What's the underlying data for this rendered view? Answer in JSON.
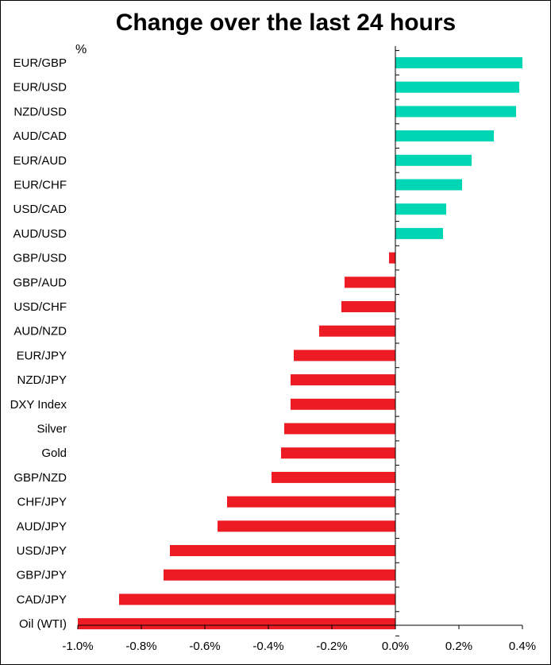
{
  "chart_data": {
    "type": "bar",
    "orientation": "horizontal",
    "title": "Change over the last 24 hours",
    "unit_label": "%",
    "xlim": [
      -1.0,
      0.4
    ],
    "x_ticks": [
      {
        "value": -1.0,
        "label": "-1.0%"
      },
      {
        "value": -0.8,
        "label": "-0.8%"
      },
      {
        "value": -0.6,
        "label": "-0.6%"
      },
      {
        "value": -0.4,
        "label": "-0.4%"
      },
      {
        "value": -0.2,
        "label": "-0.2%"
      },
      {
        "value": 0.0,
        "label": "0.0%"
      },
      {
        "value": 0.2,
        "label": "0.2%"
      },
      {
        "value": 0.4,
        "label": "0.4%"
      }
    ],
    "categories": [
      "EUR/GBP",
      "EUR/USD",
      "NZD/USD",
      "AUD/CAD",
      "EUR/AUD",
      "EUR/CHF",
      "USD/CAD",
      "AUD/USD",
      "GBP/USD",
      "GBP/AUD",
      "USD/CHF",
      "AUD/NZD",
      "EUR/JPY",
      "NZD/JPY",
      "DXY Index",
      "Silver",
      "Gold",
      "GBP/NZD",
      "CHF/JPY",
      "AUD/JPY",
      "USD/JPY",
      "GBP/JPY",
      "CAD/JPY",
      "Oil (WTI)"
    ],
    "values": [
      0.4,
      0.39,
      0.38,
      0.31,
      0.24,
      0.21,
      0.16,
      0.15,
      -0.02,
      -0.16,
      -0.17,
      -0.24,
      -0.32,
      -0.33,
      -0.33,
      -0.35,
      -0.36,
      -0.39,
      -0.53,
      -0.56,
      -0.71,
      -0.73,
      -0.87,
      -1.0
    ],
    "colors": {
      "positive": "#00d5b4",
      "negative": "#ed1c24"
    },
    "grid": false
  }
}
